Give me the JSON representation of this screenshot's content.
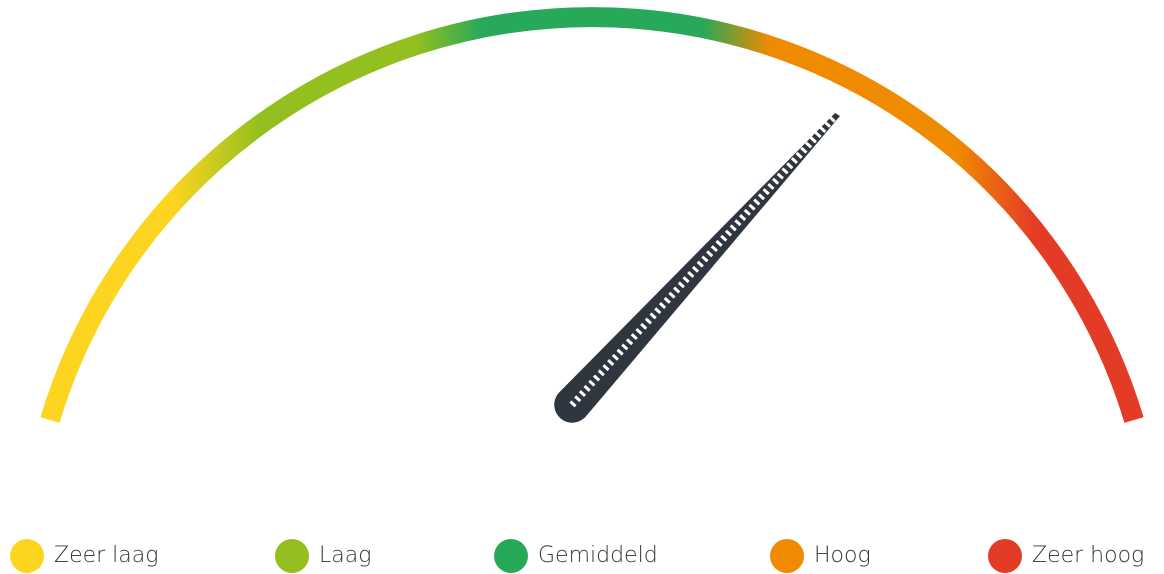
{
  "legend": [
    {
      "label": "Zeer laag",
      "color": "#fdd520"
    },
    {
      "label": "Laag",
      "color": "#93bf1f"
    },
    {
      "label": "Gemiddeld",
      "color": "#27a959"
    },
    {
      "label": "Hoog",
      "color": "#f08a00"
    },
    {
      "label": "Zeer hoog",
      "color": "#e43b26"
    }
  ]
}
